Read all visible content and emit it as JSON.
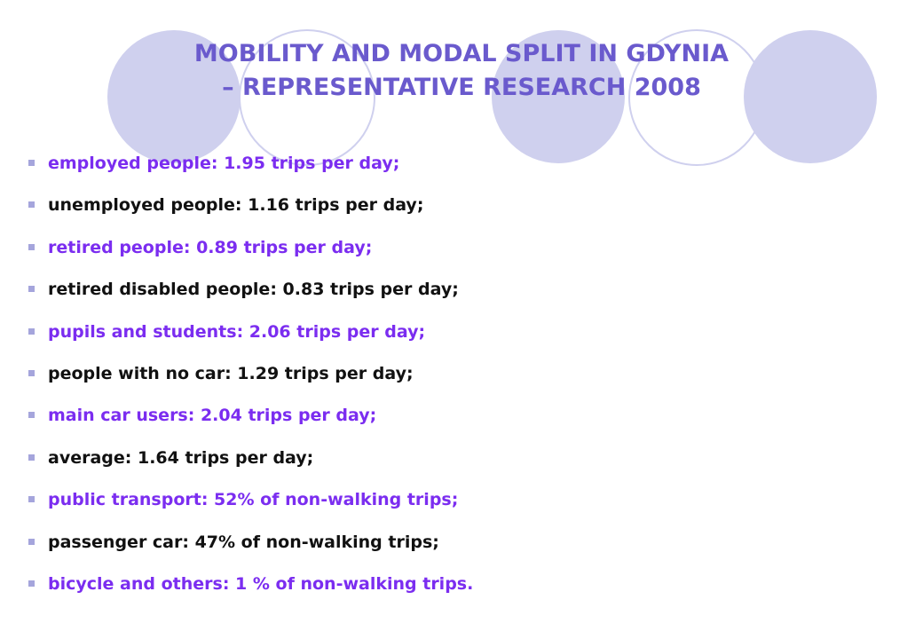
{
  "slide": {
    "title_line1": "MOBILITY AND MODAL SPLIT IN GDYNIA",
    "title_line2": "– REPRESENTATIVE RESEARCH 2008",
    "colors": {
      "title": "#6a5acd",
      "accent_text": "#7b2df0",
      "plain_text": "#111111",
      "decoration": "#cfd0ee",
      "bullet_marker": "#a5a5dc"
    },
    "bullets": [
      {
        "text": "employed people: 1.95 trips per day;",
        "color": "purple"
      },
      {
        "text": "unemployed people: 1.16 trips per day;",
        "color": "black"
      },
      {
        "text": "retired people: 0.89 trips per day;",
        "color": "purple"
      },
      {
        "text": "retired disabled people: 0.83 trips per day;",
        "color": "black"
      },
      {
        "text": "pupils and students: 2.06 trips per day;",
        "color": "purple"
      },
      {
        "text": "people with no car: 1.29 trips per day;",
        "color": "black"
      },
      {
        "text": "main car users: 2.04 trips per day;",
        "color": "purple"
      },
      {
        "text": "average: 1.64 trips per day;",
        "color": "black"
      },
      {
        "text": "public transport: 52% of non-walking trips;",
        "color": "purple"
      },
      {
        "text": "passenger car: 47% of non-walking trips;",
        "color": "black"
      },
      {
        "text": "bicycle and others: 1 % of non-walking trips.",
        "color": "purple"
      }
    ]
  }
}
